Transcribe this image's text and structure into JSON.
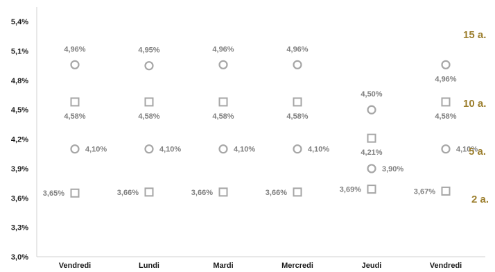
{
  "chart_data": {
    "type": "scatter",
    "title": "",
    "xlabel": "",
    "ylabel": "",
    "categories": [
      "Vendredi",
      "Lundi",
      "Mardi",
      "Mercredi",
      "Jeudi",
      "Vendredi"
    ],
    "y_ticks": [
      "3,0%",
      "3,3%",
      "3,6%",
      "3,9%",
      "4,2%",
      "4,5%",
      "4,8%",
      "5,1%",
      "5,4%"
    ],
    "ylim": [
      3.0,
      5.55
    ],
    "grid": false,
    "series_label_color": "#9c7f2e",
    "marker_color": "#a6a6a6",
    "series": [
      {
        "name": "15 a.",
        "marker": "circle",
        "values": [
          4.96,
          4.95,
          4.96,
          4.96,
          4.5,
          4.96
        ],
        "labels": [
          "4,96%",
          "4,95%",
          "4,96%",
          "4,96%",
          "4,50%",
          "4,96%"
        ]
      },
      {
        "name": "10 a.",
        "marker": "square",
        "values": [
          4.58,
          4.58,
          4.58,
          4.58,
          4.21,
          4.58
        ],
        "labels": [
          "4,58%",
          "4,58%",
          "4,58%",
          "4,58%",
          "4,21%",
          "4,58%"
        ]
      },
      {
        "name": "5 a.",
        "marker": "circle",
        "values": [
          4.1,
          4.1,
          4.1,
          4.1,
          3.9,
          4.1
        ],
        "labels": [
          "4,10%",
          "4,10%",
          "4,10%",
          "4,10%",
          "3,90%",
          "4,10%"
        ]
      },
      {
        "name": "2 a.",
        "marker": "square",
        "values": [
          3.65,
          3.66,
          3.66,
          3.66,
          3.69,
          3.67
        ],
        "labels": [
          "3,65%",
          "3,66%",
          "3,66%",
          "3,66%",
          "3,69%",
          "3,67%"
        ]
      }
    ]
  }
}
